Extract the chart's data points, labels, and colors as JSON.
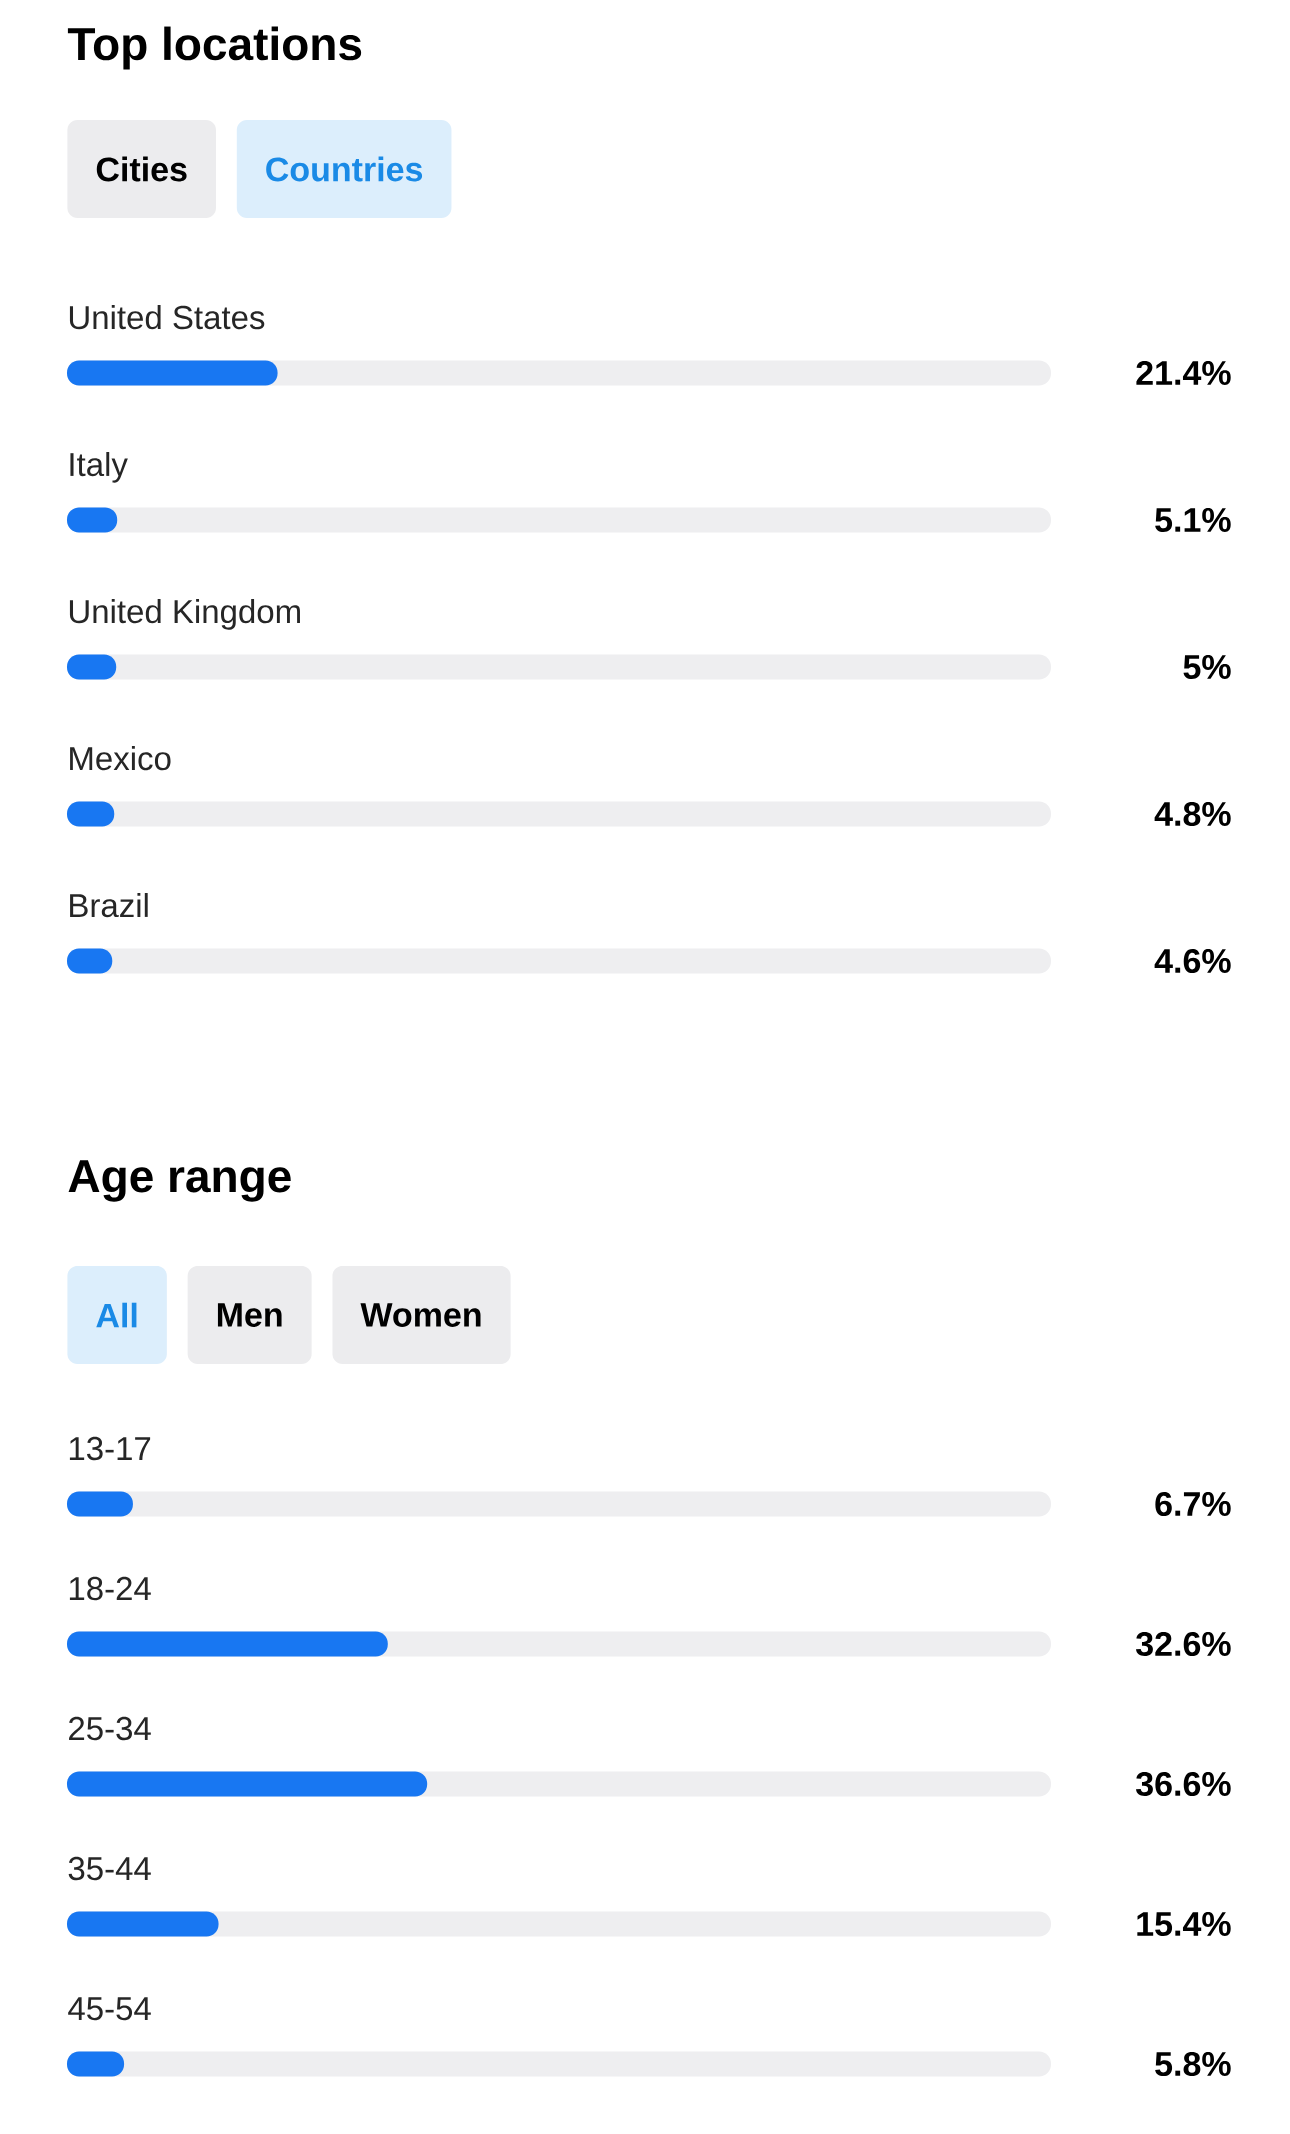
{
  "chart_data": [
    {
      "type": "bar",
      "orientation": "horizontal",
      "title": "Top locations",
      "annotations": [
        "Cities",
        "Countries"
      ],
      "categories": [
        "United States",
        "Italy",
        "United Kingdom",
        "Mexico",
        "Brazil"
      ],
      "values": [
        21.4,
        5.1,
        5,
        4.8,
        4.6
      ],
      "value_labels": [
        "21.4%",
        "5.1%",
        "5%",
        "4.8%",
        "4.6%"
      ],
      "color": "#1877f2",
      "xlim": [
        0,
        100
      ]
    },
    {
      "type": "bar",
      "orientation": "horizontal",
      "title": "Age range",
      "annotations": [
        "All",
        "Men",
        "Women"
      ],
      "categories": [
        "13-17",
        "18-24",
        "25-34",
        "35-44",
        "45-54"
      ],
      "values": [
        6.7,
        32.6,
        36.6,
        15.4,
        5.8
      ],
      "value_labels": [
        "6.7%",
        "32.6%",
        "36.6%",
        "15.4%",
        "5.8%"
      ],
      "color": "#1877f2",
      "xlim": [
        0,
        100
      ]
    }
  ]
}
